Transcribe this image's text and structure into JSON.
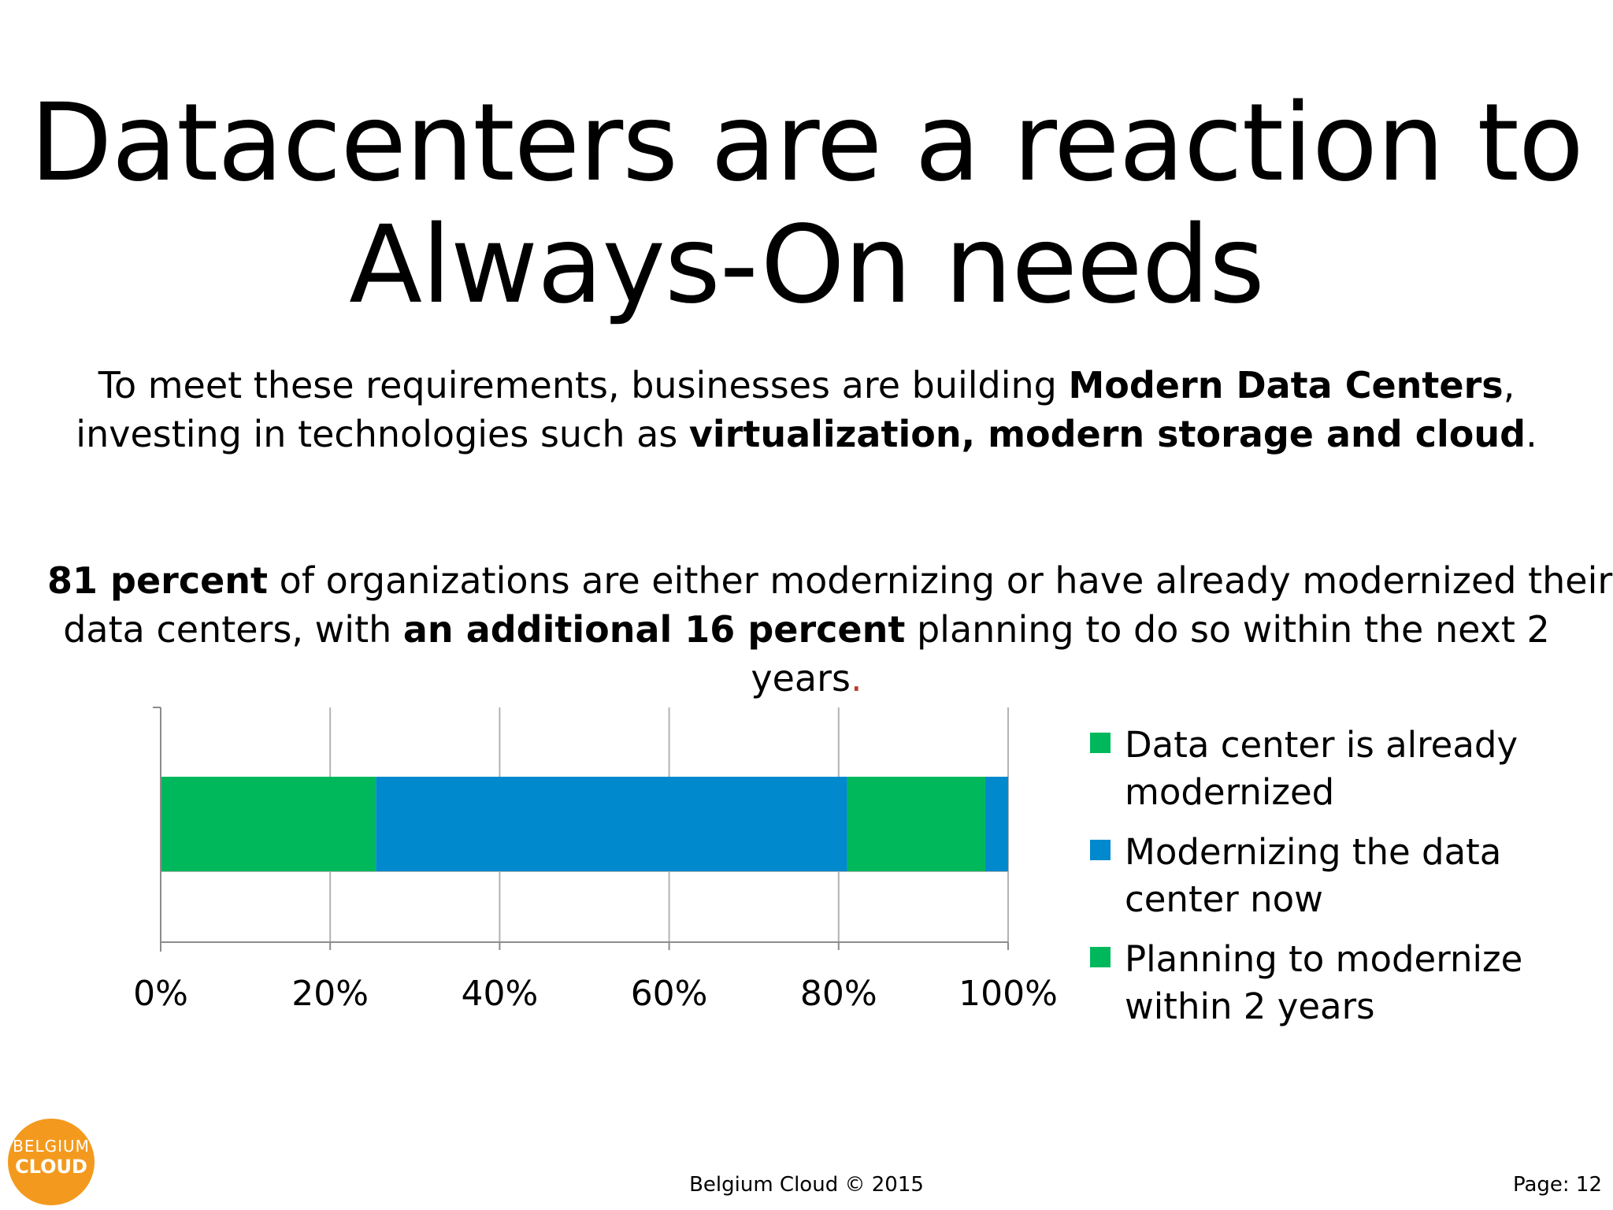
{
  "slide": {
    "title_lines": [
      "Datacenters are a reaction to",
      "Always-On needs"
    ],
    "intro": {
      "l1_a": "To meet these requirements, businesses are building ",
      "l1_b": "Modern Data Centers",
      "l1_c": ",",
      "l2_a": "investing in technologies such as ",
      "l2_b": "virtualization, modern storage and cloud",
      "l2_c": "."
    },
    "stat": {
      "l1_a": "81 percent",
      "l1_b": " of organizations are either modernizing or have already modernized their",
      "l2_a": "data centers, with ",
      "l2_b": "an additional 16 percent",
      "l2_c": " planning to do so within the next 2",
      "l3_a": "years",
      "l3_b": "."
    }
  },
  "chart_data": {
    "type": "bar",
    "orientation": "horizontal",
    "stacked": true,
    "title": "",
    "xlabel": "",
    "ylabel": "",
    "xlim": [
      0,
      100
    ],
    "x_ticks": [
      "0%",
      "20%",
      "40%",
      "60%",
      "80%",
      "100%"
    ],
    "grid": true,
    "legend_position": "right",
    "series": [
      {
        "name": "Data center is already modernized",
        "color": "#00b85c",
        "values": [
          25.4
        ]
      },
      {
        "name": "Modernizing the data center now",
        "color": "#0089cc",
        "values": [
          55.6
        ]
      },
      {
        "name": "Planning to modernize within 2 years",
        "color": "#00b85c",
        "values": [
          16.3
        ]
      },
      {
        "color": "#0089cc",
        "values": [
          2.7
        ]
      }
    ],
    "legend": [
      {
        "lines": [
          "Data center is already",
          "modernized"
        ],
        "color": "#00b85c"
      },
      {
        "lines": [
          "Modernizing the data",
          "center now"
        ],
        "color": "#0089cc"
      },
      {
        "lines": [
          "Planning to modernize",
          "within 2 years"
        ],
        "color": "#00b85c"
      }
    ]
  },
  "logo": {
    "line1": "BELGIUM",
    "line2": "CLOUD",
    "color": "#f39a1e"
  },
  "footer": {
    "center": "Belgium Cloud © 2015",
    "page": "Page: 12"
  }
}
